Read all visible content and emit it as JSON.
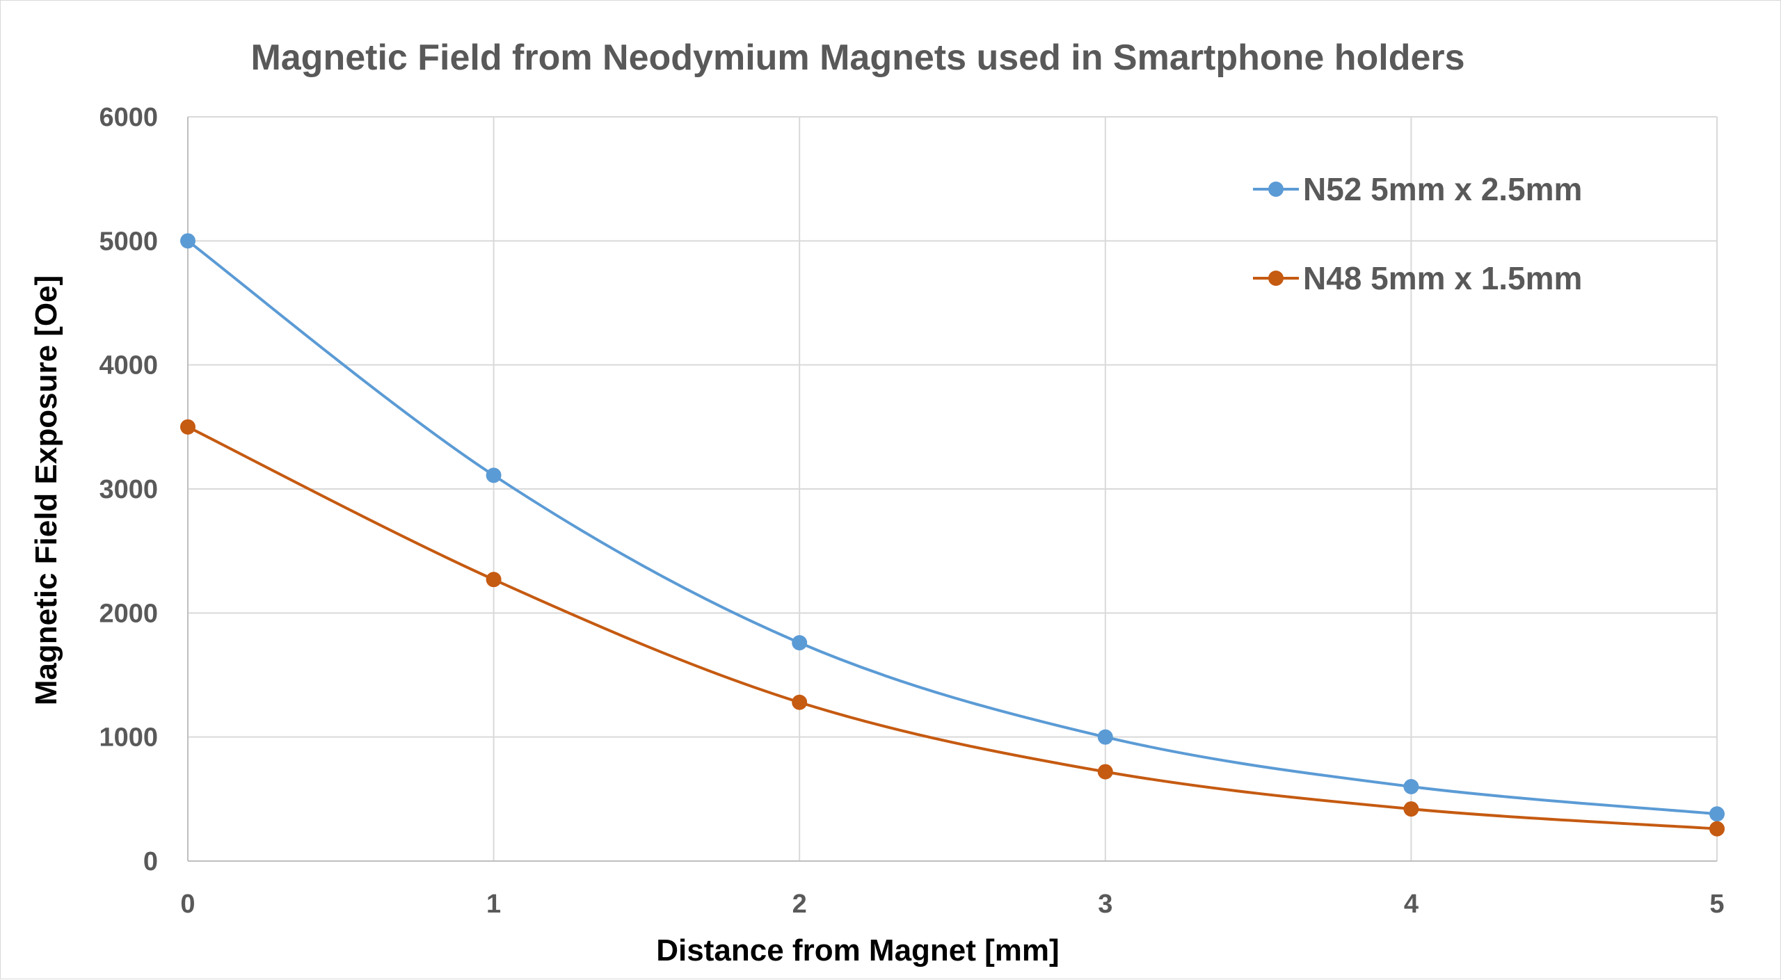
{
  "chart_data": {
    "type": "line",
    "title": "Magnetic Field from Neodymium Magnets used in Smartphone holders",
    "xlabel": "Distance from Magnet [mm]",
    "ylabel": "Magnetic Field Exposure [Oe]",
    "x": [
      0,
      1,
      2,
      3,
      4,
      5
    ],
    "xlim": [
      0,
      5
    ],
    "ylim": [
      0,
      6000
    ],
    "x_ticks": [
      "0",
      "1",
      "2",
      "3",
      "4",
      "5"
    ],
    "y_ticks": [
      "0",
      "1000",
      "2000",
      "3000",
      "4000",
      "5000",
      "6000"
    ],
    "grid": true,
    "smooth": true,
    "legend_position": "top-right",
    "series": [
      {
        "name": "N52 5mm x 2.5mm",
        "color": "#5b9bd5",
        "values": [
          5000,
          3110,
          1760,
          1000,
          600,
          380
        ]
      },
      {
        "name": "N48 5mm x 1.5mm",
        "color": "#c55a11",
        "values": [
          3500,
          2270,
          1280,
          720,
          420,
          260
        ]
      }
    ]
  }
}
